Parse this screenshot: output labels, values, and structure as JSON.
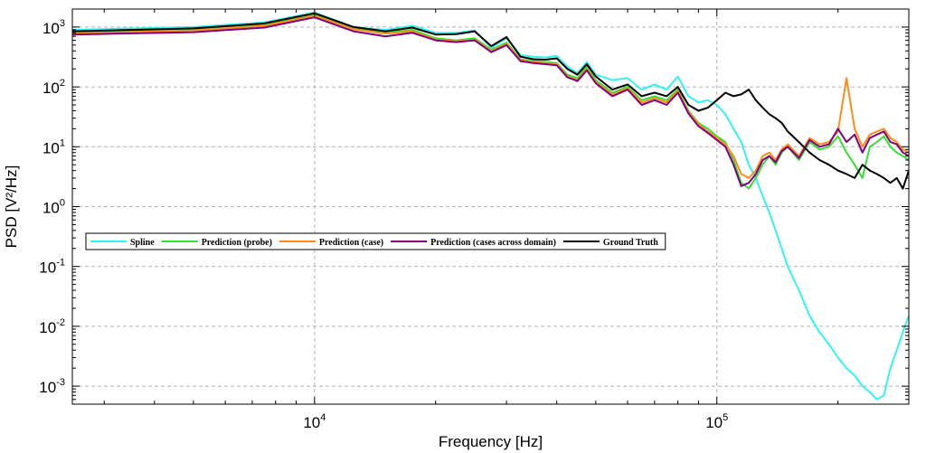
{
  "chart_data": {
    "type": "line",
    "xlabel": "Frequency [Hz]",
    "ylabel": "PSD [V²/Hz]",
    "xscale": "log",
    "yscale": "log",
    "xlim": [
      2500,
      300000
    ],
    "ylim": [
      0.0005,
      2000
    ],
    "grid": true,
    "legend_position": "middle-left",
    "x_ticks": [
      {
        "value": 10000,
        "base": "10",
        "exp": "4"
      },
      {
        "value": 100000,
        "base": "10",
        "exp": "5"
      }
    ],
    "y_ticks": [
      {
        "value": 1000,
        "base": "10",
        "exp": "3"
      },
      {
        "value": 100,
        "base": "10",
        "exp": "2"
      },
      {
        "value": 10,
        "base": "10",
        "exp": "1"
      },
      {
        "value": 1,
        "base": "10",
        "exp": "0"
      },
      {
        "value": 0.1,
        "base": "10",
        "exp": "-1"
      },
      {
        "value": 0.01,
        "base": "10",
        "exp": "-2"
      },
      {
        "value": 0.001,
        "base": "10",
        "exp": "-3"
      }
    ],
    "series": [
      {
        "name": "Spline",
        "color": "#33f2f2",
        "x": [
          2500,
          5000,
          7500,
          10000,
          12500,
          15000,
          17500,
          20000,
          22500,
          25000,
          27500,
          30000,
          32500,
          35000,
          37500,
          40000,
          42500,
          45000,
          47500,
          50000,
          55000,
          60000,
          65000,
          70000,
          75000,
          80000,
          85000,
          90000,
          95000,
          100000,
          105000,
          110000,
          115000,
          120000,
          125000,
          130000,
          135000,
          140000,
          145000,
          150000,
          160000,
          170000,
          180000,
          190000,
          200000,
          210000,
          220000,
          230000,
          240000,
          250000,
          260000,
          270000,
          280000,
          290000,
          300000
        ],
        "y": [
          900,
          1000,
          1200,
          1750,
          1000,
          900,
          1050,
          800,
          800,
          880,
          450,
          650,
          340,
          320,
          310,
          330,
          220,
          170,
          260,
          160,
          130,
          140,
          90,
          110,
          90,
          150,
          70,
          55,
          60,
          50,
          35,
          20,
          12,
          5,
          3,
          1.5,
          0.8,
          0.4,
          0.2,
          0.1,
          0.04,
          0.015,
          0.008,
          0.005,
          0.003,
          0.002,
          0.0015,
          0.001,
          0.0008,
          0.0006,
          0.0007,
          0.002,
          0.004,
          0.008,
          0.015
        ]
      },
      {
        "name": "Prediction (probe)",
        "color": "#35e035",
        "x": [
          2500,
          5000,
          7500,
          10000,
          12500,
          15000,
          17500,
          20000,
          22500,
          25000,
          27500,
          30000,
          32500,
          35000,
          37500,
          40000,
          42500,
          45000,
          47500,
          50000,
          55000,
          60000,
          65000,
          70000,
          75000,
          80000,
          85000,
          90000,
          95000,
          100000,
          105000,
          110000,
          115000,
          120000,
          125000,
          130000,
          135000,
          140000,
          145000,
          150000,
          160000,
          170000,
          180000,
          190000,
          200000,
          210000,
          220000,
          230000,
          240000,
          250000,
          260000,
          270000,
          280000,
          290000,
          300000
        ],
        "y": [
          800,
          900,
          1100,
          1600,
          950,
          800,
          900,
          650,
          600,
          650,
          420,
          550,
          290,
          270,
          260,
          250,
          160,
          140,
          220,
          130,
          80,
          100,
          60,
          70,
          60,
          90,
          40,
          25,
          20,
          15,
          12,
          6,
          2.5,
          2,
          3,
          5,
          7,
          5,
          8,
          10,
          6,
          12,
          9,
          10,
          15,
          8,
          5,
          3,
          10,
          12,
          15,
          10,
          8,
          7,
          6
        ]
      },
      {
        "name": "Prediction (case)",
        "color": "#ff8c1a",
        "x": [
          2500,
          5000,
          7500,
          10000,
          12500,
          15000,
          17500,
          20000,
          22500,
          25000,
          27500,
          30000,
          32500,
          35000,
          37500,
          40000,
          42500,
          45000,
          47500,
          50000,
          55000,
          60000,
          65000,
          70000,
          75000,
          80000,
          85000,
          90000,
          95000,
          100000,
          105000,
          110000,
          115000,
          120000,
          125000,
          130000,
          135000,
          140000,
          145000,
          150000,
          160000,
          170000,
          180000,
          190000,
          200000,
          210000,
          220000,
          230000,
          240000,
          250000,
          260000,
          270000,
          280000,
          290000,
          300000
        ],
        "y": [
          780,
          880,
          1050,
          1550,
          920,
          780,
          850,
          620,
          580,
          620,
          400,
          520,
          280,
          260,
          250,
          240,
          150,
          130,
          200,
          120,
          75,
          95,
          55,
          65,
          55,
          85,
          38,
          24,
          18,
          14,
          11,
          7,
          3.5,
          3,
          4,
          7,
          8,
          6,
          9,
          11,
          7,
          14,
          11,
          12,
          18,
          140,
          20,
          10,
          16,
          18,
          20,
          14,
          12,
          9,
          8
        ]
      },
      {
        "name": "Prediction (cases across domain)",
        "color": "#800080",
        "x": [
          2500,
          5000,
          7500,
          10000,
          12500,
          15000,
          17500,
          20000,
          22500,
          25000,
          27500,
          30000,
          32500,
          35000,
          37500,
          40000,
          42500,
          45000,
          47500,
          50000,
          55000,
          60000,
          65000,
          70000,
          75000,
          80000,
          85000,
          90000,
          95000,
          100000,
          105000,
          110000,
          115000,
          120000,
          125000,
          130000,
          135000,
          140000,
          145000,
          150000,
          160000,
          170000,
          180000,
          190000,
          200000,
          210000,
          220000,
          230000,
          240000,
          250000,
          260000,
          270000,
          280000,
          290000,
          300000
        ],
        "y": [
          750,
          820,
          980,
          1450,
          850,
          700,
          800,
          600,
          560,
          600,
          380,
          500,
          270,
          250,
          240,
          230,
          145,
          125,
          190,
          115,
          70,
          90,
          50,
          60,
          50,
          80,
          36,
          22,
          17,
          13,
          10,
          5,
          2.2,
          2.5,
          3.5,
          6,
          7,
          5.5,
          8.5,
          10,
          6.5,
          13,
          10,
          11,
          20,
          12,
          16,
          8,
          14,
          16,
          18,
          12,
          11,
          8,
          7
        ]
      },
      {
        "name": "Ground Truth",
        "color": "#000000",
        "x": [
          2500,
          5000,
          7500,
          10000,
          12500,
          15000,
          17500,
          20000,
          22500,
          25000,
          27500,
          30000,
          32500,
          35000,
          37500,
          40000,
          42500,
          45000,
          47500,
          50000,
          55000,
          60000,
          65000,
          70000,
          75000,
          80000,
          85000,
          90000,
          95000,
          100000,
          105000,
          110000,
          115000,
          120000,
          125000,
          130000,
          135000,
          140000,
          145000,
          150000,
          160000,
          170000,
          180000,
          190000,
          200000,
          210000,
          220000,
          230000,
          240000,
          250000,
          260000,
          270000,
          280000,
          290000,
          300000
        ],
        "y": [
          850,
          950,
          1150,
          1700,
          1000,
          850,
          980,
          750,
          760,
          850,
          480,
          680,
          320,
          290,
          285,
          300,
          200,
          160,
          240,
          150,
          90,
          110,
          70,
          80,
          70,
          100,
          50,
          40,
          45,
          60,
          80,
          70,
          75,
          90,
          60,
          45,
          35,
          30,
          25,
          18,
          12,
          8,
          6,
          5,
          4,
          3.5,
          3,
          5,
          4,
          3.5,
          3,
          2.5,
          3,
          2,
          4
        ]
      }
    ]
  }
}
